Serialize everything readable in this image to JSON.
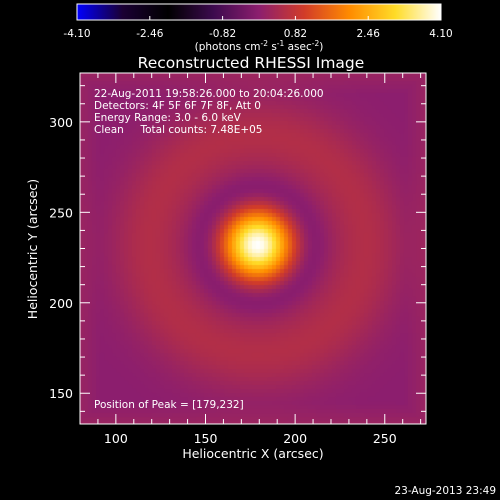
{
  "chart_data": {
    "type": "heatmap",
    "title": "Reconstructed RHESSI Image",
    "xlabel": "Heliocentric X (arcsec)",
    "ylabel": "Heliocentric Y (arcsec)",
    "xlim": [
      80,
      273
    ],
    "ylim": [
      133,
      327
    ],
    "xticks": [
      100,
      150,
      200,
      250
    ],
    "yticks": [
      150,
      200,
      250,
      300
    ],
    "colorbar": {
      "ticks": [
        "-4.10",
        "-2.46",
        "-0.82",
        "0.82",
        "2.46",
        "4.10"
      ],
      "range": [
        -4.1,
        4.1
      ],
      "unit_prefix": "(photons cm",
      "unit_exp1": "-2",
      "unit_mid": " s",
      "unit_exp2": "-1",
      "unit_suffix": " asec",
      "unit_exp3": "-2",
      "unit_end": ")",
      "stops": [
        "#0000ff",
        "#1a0033",
        "#000000",
        "#3c0a4e",
        "#8c1e6e",
        "#d23c28",
        "#ff8c00",
        "#ffdc28",
        "#ffffff"
      ]
    },
    "annotations": {
      "time_range": "22-Aug-2011 19:58:26.000 to 20:04:26.000",
      "detectors": "Detectors: 4F 5F 6F 7F 8F, Att 0",
      "energy": "Energy Range: 3.0 - 6.0 keV",
      "clean": "Clean     Total counts: 7.48E+05",
      "peak": "Position of Peak = [179,232]"
    },
    "source": {
      "peak_x": 179,
      "peak_y": 232,
      "peak_value": 4.1,
      "sigma_arcsec": 13,
      "ring_radius_arcsec": 60,
      "ring_value": 0.55
    }
  },
  "footer": {
    "timestamp": "23-Aug-2013 23:49"
  }
}
